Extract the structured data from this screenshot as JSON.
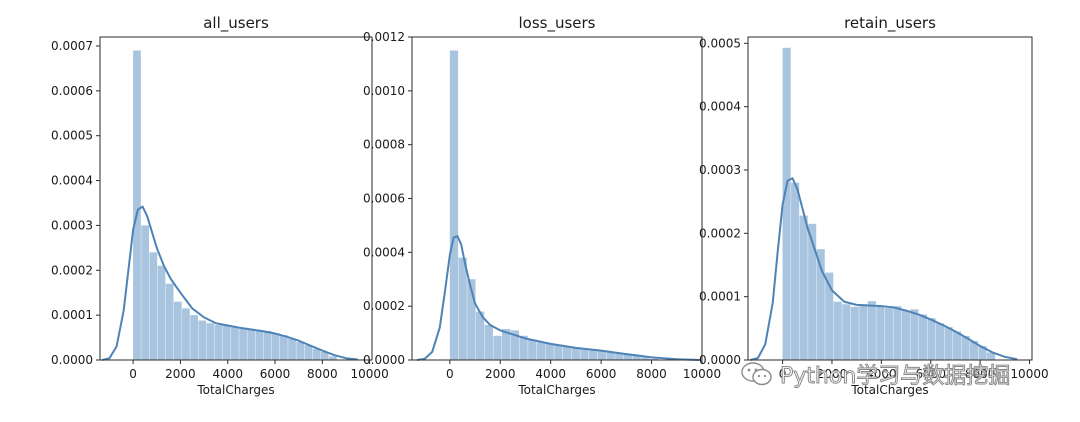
{
  "chart_data": [
    {
      "type": "histogram",
      "title": "all_users",
      "xlabel": "TotalCharges",
      "ylabel": "",
      "xlim": [
        -1400,
        10100
      ],
      "ylim": [
        0,
        0.00072
      ],
      "xticks": [
        0,
        2000,
        4000,
        6000,
        8000,
        10000
      ],
      "xtick_labels": [
        "0",
        "2000",
        "4000",
        "6000",
        "8000",
        "10000"
      ],
      "yticks": [
        0,
        0.0001,
        0.0002,
        0.0003,
        0.0004,
        0.0005,
        0.0006,
        0.0007
      ],
      "ytick_labels": [
        "0.0000",
        "0.0001",
        "0.0002",
        "0.0003",
        "0.0004",
        "0.0005",
        "0.0006",
        "0.0007"
      ],
      "bins": [
        [
          0,
          345,
          0.00069
        ],
        [
          345,
          690,
          0.0003
        ],
        [
          690,
          1035,
          0.00024
        ],
        [
          1035,
          1380,
          0.00021
        ],
        [
          1380,
          1725,
          0.00017
        ],
        [
          1725,
          2070,
          0.00013
        ],
        [
          2070,
          2415,
          0.000115
        ],
        [
          2415,
          2760,
          0.0001
        ],
        [
          2760,
          3105,
          8.8e-05
        ],
        [
          3105,
          3450,
          8.2e-05
        ],
        [
          3450,
          3795,
          7.8e-05
        ],
        [
          3795,
          4140,
          7.8e-05
        ],
        [
          4140,
          4485,
          7.5e-05
        ],
        [
          4485,
          4830,
          7e-05
        ],
        [
          4830,
          5175,
          6.8e-05
        ],
        [
          5175,
          5520,
          6.7e-05
        ],
        [
          5520,
          5865,
          6.5e-05
        ],
        [
          5865,
          6210,
          6e-05
        ],
        [
          6210,
          6555,
          5.5e-05
        ],
        [
          6555,
          6900,
          4.8e-05
        ],
        [
          6900,
          7245,
          4e-05
        ],
        [
          7245,
          7590,
          3.3e-05
        ],
        [
          7590,
          7935,
          2.5e-05
        ],
        [
          7935,
          8280,
          1.8e-05
        ],
        [
          8280,
          8625,
          8e-06
        ]
      ],
      "kde": {
        "x": [
          -1300,
          -1000,
          -700,
          -400,
          -200,
          0,
          200,
          400,
          600,
          800,
          1000,
          1300,
          1600,
          2000,
          2500,
          3000,
          3500,
          4000,
          4500,
          5000,
          5500,
          6000,
          6500,
          7000,
          7500,
          8000,
          8500,
          9000,
          9500
        ],
        "y": [
          0.0,
          4e-06,
          3e-05,
          0.00011,
          0.0002,
          0.00029,
          0.000335,
          0.000342,
          0.00032,
          0.000285,
          0.00025,
          0.00021,
          0.00018,
          0.00015,
          0.000115,
          9.5e-05,
          8.2e-05,
          7.7e-05,
          7.2e-05,
          6.8e-05,
          6.4e-05,
          5.9e-05,
          5.2e-05,
          4.3e-05,
          3.2e-05,
          2.1e-05,
          1.1e-05,
          4e-06,
          1e-06
        ]
      }
    },
    {
      "type": "histogram",
      "title": "loss_users",
      "xlabel": "TotalCharges",
      "ylabel": "",
      "xlim": [
        -1500,
        10000
      ],
      "ylim": [
        0,
        0.0012
      ],
      "xticks": [
        0,
        2000,
        4000,
        6000,
        8000,
        10000
      ],
      "xtick_labels": [
        "0",
        "2000",
        "4000",
        "6000",
        "8000",
        "10000"
      ],
      "yticks": [
        0,
        0.0002,
        0.0004,
        0.0006,
        0.0008,
        0.001,
        0.0012
      ],
      "ytick_labels": [
        "0.0000",
        "0.0002",
        "0.0004",
        "0.0006",
        "0.0008",
        "0.0010",
        "0.0012"
      ],
      "bins": [
        [
          0,
          345,
          0.00115
        ],
        [
          345,
          690,
          0.00038
        ],
        [
          690,
          1035,
          0.0003
        ],
        [
          1035,
          1380,
          0.00018
        ],
        [
          1380,
          1725,
          0.00013
        ],
        [
          1725,
          2070,
          9e-05
        ],
        [
          2070,
          2415,
          0.000115
        ],
        [
          2415,
          2760,
          0.00011
        ],
        [
          2760,
          3105,
          9e-05
        ],
        [
          3105,
          3450,
          7.5e-05
        ],
        [
          3450,
          3795,
          6.5e-05
        ],
        [
          3795,
          4140,
          6e-05
        ],
        [
          4140,
          4485,
          5.5e-05
        ],
        [
          4485,
          4830,
          5e-05
        ],
        [
          4830,
          5175,
          4.5e-05
        ],
        [
          5175,
          5520,
          4e-05
        ],
        [
          5520,
          5865,
          3.8e-05
        ],
        [
          5865,
          6210,
          3.5e-05
        ],
        [
          6210,
          6555,
          3e-05
        ],
        [
          6555,
          6900,
          2.5e-05
        ],
        [
          6900,
          7245,
          2e-05
        ],
        [
          7245,
          7590,
          1.5e-05
        ],
        [
          7590,
          7935,
          1e-05
        ],
        [
          7935,
          8280,
          5e-06
        ]
      ],
      "kde": {
        "x": [
          -1300,
          -1000,
          -700,
          -400,
          -200,
          0,
          150,
          300,
          450,
          600,
          800,
          1000,
          1300,
          1600,
          2000,
          2500,
          3000,
          4000,
          5000,
          6000,
          7000,
          8000,
          9000,
          9900
        ],
        "y": [
          0.0,
          4e-06,
          3e-05,
          0.00012,
          0.00025,
          0.00039,
          0.000455,
          0.00046,
          0.00043,
          0.00036,
          0.00028,
          0.00021,
          0.00016,
          0.00013,
          0.00011,
          9.5e-05,
          8e-05,
          6e-05,
          4.5e-05,
          3.5e-05,
          2.2e-05,
          1e-05,
          3e-06,
          0.0
        ]
      }
    },
    {
      "type": "histogram",
      "title": "retain_users",
      "xlabel": "TotalCharges",
      "ylabel": "",
      "xlim": [
        -1400,
        10100
      ],
      "ylim": [
        0,
        0.00051
      ],
      "xticks": [
        0,
        2000,
        4000,
        6000,
        8000,
        10000
      ],
      "xtick_labels": [
        "0",
        "2000",
        "4000",
        "6000",
        "8000",
        "10000"
      ],
      "yticks": [
        0,
        0.0001,
        0.0002,
        0.0003,
        0.0004,
        0.0005
      ],
      "ytick_labels": [
        "0.0000",
        "0.0001",
        "0.0002",
        "0.0003",
        "0.0004",
        "0.0005"
      ],
      "bins": [
        [
          0,
          345,
          0.000493
        ],
        [
          345,
          690,
          0.00028
        ],
        [
          690,
          1035,
          0.000228
        ],
        [
          1035,
          1380,
          0.000215
        ],
        [
          1380,
          1725,
          0.000175
        ],
        [
          1725,
          2070,
          0.000138
        ],
        [
          2070,
          2415,
          9.2e-05
        ],
        [
          2415,
          2760,
          8.8e-05
        ],
        [
          2760,
          3105,
          8.4e-05
        ],
        [
          3105,
          3450,
          8.8e-05
        ],
        [
          3450,
          3795,
          9.3e-05
        ],
        [
          3795,
          4140,
          8.6e-05
        ],
        [
          4140,
          4485,
          8.2e-05
        ],
        [
          4485,
          4830,
          8.5e-05
        ],
        [
          4830,
          5175,
          7.8e-05
        ],
        [
          5175,
          5520,
          8e-05
        ],
        [
          5520,
          5865,
          7.2e-05
        ],
        [
          5865,
          6210,
          6.6e-05
        ],
        [
          6210,
          6555,
          5.8e-05
        ],
        [
          6555,
          6900,
          5.2e-05
        ],
        [
          6900,
          7245,
          4.5e-05
        ],
        [
          7245,
          7590,
          3.8e-05
        ],
        [
          7590,
          7935,
          3e-05
        ],
        [
          7935,
          8280,
          2.2e-05
        ],
        [
          8280,
          8625,
          1.2e-05
        ]
      ],
      "kde": {
        "x": [
          -1300,
          -1000,
          -700,
          -400,
          -200,
          0,
          200,
          400,
          600,
          800,
          1000,
          1300,
          1600,
          2000,
          2500,
          3000,
          3500,
          4000,
          4500,
          5000,
          5500,
          6000,
          6500,
          7000,
          7500,
          8000,
          8500,
          9000,
          9500
        ],
        "y": [
          0.0,
          3e-06,
          2.5e-05,
          9e-05,
          0.00017,
          0.000245,
          0.000283,
          0.000287,
          0.00027,
          0.00024,
          0.00021,
          0.000175,
          0.00014,
          0.00011,
          9.2e-05,
          8.7e-05,
          8.6e-05,
          8.5e-05,
          8.3e-05,
          7.8e-05,
          7.2e-05,
          6.4e-05,
          5.5e-05,
          4.5e-05,
          3.4e-05,
          2.2e-05,
          1.2e-05,
          5e-06,
          1e-06
        ]
      }
    }
  ],
  "watermark": {
    "icon": "wechat-icon",
    "text": "Python学习与数据挖掘"
  }
}
